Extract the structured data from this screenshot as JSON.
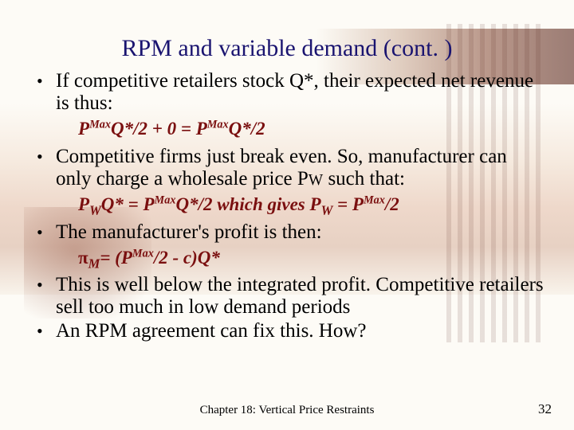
{
  "title": "RPM and variable demand (cont. )",
  "bullets": {
    "b1": "If competitive retailers stock Q*, their expected net revenue is thus:",
    "b2_a": "Competitive firms just break even. So, manufacturer can only charge a wholesale price P",
    "b2_b": " such that:",
    "b3": "The manufacturer's profit is then:",
    "b4": "This is well below the integrated profit. Competitive retailers sell too much in low demand periods",
    "b5": "An RPM agreement can fix this.  How?"
  },
  "formulas": {
    "f1_a": "P",
    "f1_sup": "Max",
    "f1_b": "Q*/2 + 0 = P",
    "f1_c": "Q*/2",
    "f2_a": "P",
    "f2_subW": "W",
    "f2_b": "Q* = P",
    "f2_c": "Q*/2  which gives P",
    "f2_d": " = P",
    "f2_e": "/2",
    "f3_pi": "π",
    "f3_subM": "M",
    "f3_a": "= (P",
    "f3_b": "/2 - c)Q*"
  },
  "footer": {
    "chapter": "Chapter 18: Vertical Price Restraints",
    "page": "32"
  },
  "colors": {
    "title": "#1a1470",
    "formula": "#7a0f0f",
    "text": "#000000",
    "background": "#fdfbf6"
  }
}
